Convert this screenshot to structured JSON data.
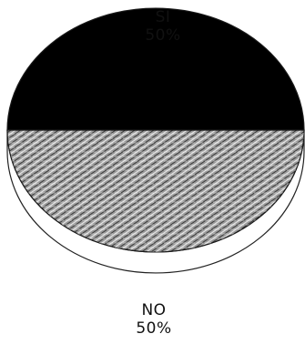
{
  "chart_data": {
    "type": "pie",
    "style": "3d",
    "categories": [
      "SI",
      "NO"
    ],
    "values": [
      50,
      50
    ],
    "value_labels": [
      "50%",
      "50%"
    ],
    "colors": [
      "#000000",
      "#8a8a8a"
    ],
    "title": ""
  }
}
